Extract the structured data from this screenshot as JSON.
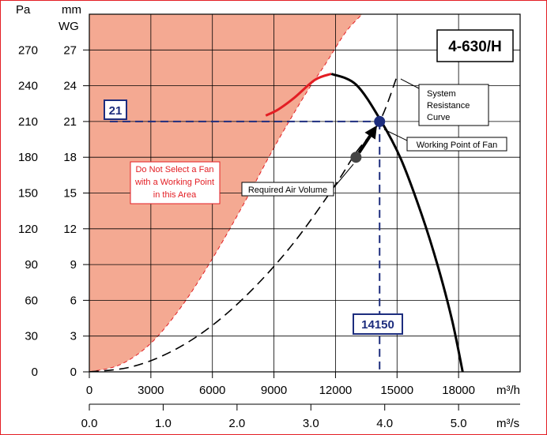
{
  "chart_data": {
    "type": "line",
    "model": "4-630/H",
    "x_units_primary": "m³/h",
    "x_units_secondary": "m³/s",
    "y_units_primary": "Pa",
    "y_units_secondary": [
      "mm",
      "WG"
    ],
    "xlim": [
      0,
      21000
    ],
    "ylim": [
      0,
      300
    ],
    "x_ticks_primary": [
      0,
      3000,
      6000,
      9000,
      12000,
      15000,
      18000
    ],
    "x_ticks_primary_labels": [
      "0",
      "3000",
      "6000",
      "9000",
      "12000",
      "15000",
      "18000"
    ],
    "x_ticks_secondary": [
      0,
      3600,
      7200,
      10800,
      14400,
      18000
    ],
    "x_ticks_secondary_labels": [
      "0.0",
      "1.0",
      "2.0",
      "3.0",
      "4.0",
      "5.0"
    ],
    "y_ticks_primary": [
      0,
      30,
      60,
      90,
      120,
      150,
      180,
      210,
      240,
      270
    ],
    "y_ticks_primary_labels": [
      "0",
      "30",
      "60",
      "90",
      "120",
      "150",
      "180",
      "210",
      "240",
      "270"
    ],
    "y_ticks_secondary_labels": [
      "0",
      "3",
      "6",
      "9",
      "12",
      "15",
      "18",
      "21",
      "24",
      "27"
    ],
    "grid": true,
    "series": [
      {
        "key": "fan_curve",
        "color": "#000000",
        "x": [
          11800,
          13000,
          14200,
          15200,
          16200,
          17000,
          17700,
          18200
        ],
        "y": [
          250,
          241,
          211,
          178,
          132,
          88,
          42,
          0
        ]
      },
      {
        "key": "stall_curve",
        "color": "#e31e24",
        "x": [
          8600,
          9200,
          10000,
          11000,
          11800
        ],
        "y": [
          215,
          220,
          230,
          245,
          250
        ]
      },
      {
        "key": "system_resistance",
        "color": "#000000",
        "dashed": true,
        "x": [
          0,
          2000,
          4000,
          6000,
          8000,
          10000,
          12000,
          13000,
          14150,
          15000
        ],
        "y": [
          0,
          4,
          17,
          39,
          70,
          109,
          157,
          184,
          210,
          248
        ]
      }
    ],
    "unsafe_region": {
      "color": "#f4a992",
      "boundary_x": [
        0,
        1500,
        3000,
        4500,
        6000,
        7500,
        9000,
        10500,
        11500,
        12500,
        13300
      ],
      "boundary_y": [
        0,
        6,
        24,
        55,
        95,
        140,
        188,
        232,
        258,
        285,
        300
      ]
    },
    "working_point": {
      "x": 14150,
      "y": 210,
      "color": "#1d2d7e"
    },
    "required_point": {
      "x": 13000,
      "y": 180,
      "color": "#444444"
    },
    "reference_lines": {
      "y": 210,
      "x": 14150,
      "color": "#1d2d7e"
    },
    "annotations": {
      "pressure_box": "21",
      "flow_box": "14150",
      "unsafe_text": [
        "Do Not Select a Fan",
        "with a Working Point",
        "in this Area"
      ],
      "required_label": "Required Air Volume",
      "working_label": "Working Point of Fan",
      "system_label": [
        "System",
        "Resistance",
        "Curve"
      ]
    }
  }
}
